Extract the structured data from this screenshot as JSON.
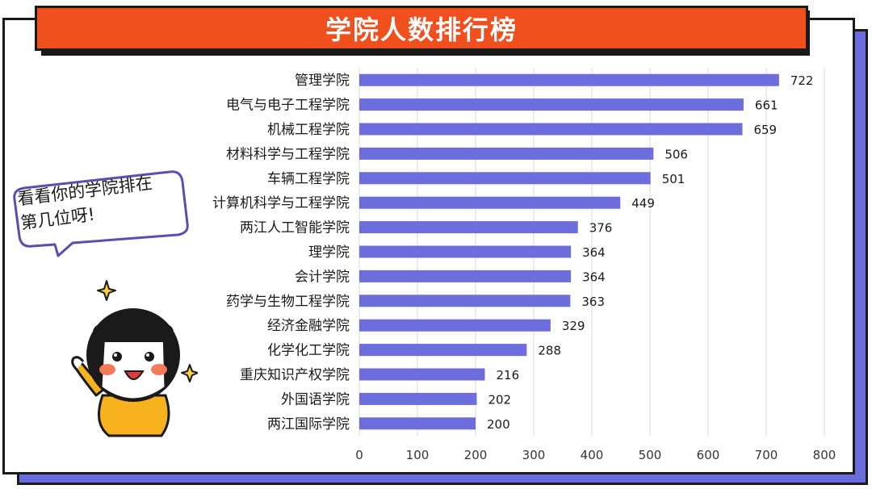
{
  "title": "学院人数排行榜",
  "bubble": {
    "line1": "看看你的学院排在",
    "line2": "第几位呀!"
  },
  "colors": {
    "bar": "#6d6dde",
    "banner": "#f0501e",
    "shadow": "#6b6bdd",
    "grid": "#d9d9d9"
  },
  "chart_data": {
    "type": "bar",
    "orientation": "horizontal",
    "title": "学院人数排行榜",
    "categories": [
      "管理学院",
      "电气与电子工程学院",
      "机械工程学院",
      "材料科学与工程学院",
      "车辆工程学院",
      "计算机科学与工程学院",
      "两江人工智能学院",
      "理学院",
      "会计学院",
      "药学与生物工程学院",
      "经济金融学院",
      "化学化工学院",
      "重庆知识产权学院",
      "外国语学院",
      "两江国际学院"
    ],
    "values": [
      722,
      661,
      659,
      506,
      501,
      449,
      376,
      364,
      364,
      363,
      329,
      288,
      216,
      202,
      200
    ],
    "xlim": [
      0,
      800
    ],
    "xticks": [
      0,
      100,
      200,
      300,
      400,
      500,
      600,
      700,
      800
    ],
    "grid": true,
    "data_labels": true
  }
}
